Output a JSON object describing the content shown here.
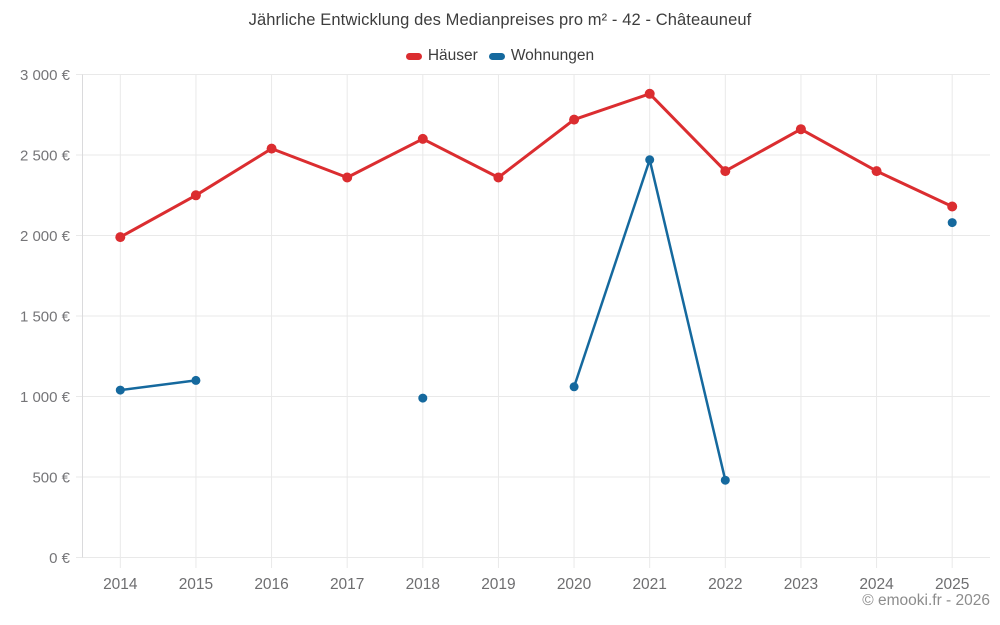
{
  "title": "Jährliche Entwicklung des Medianpreises pro m² - 42 - Châteauneuf",
  "legend": {
    "items": [
      {
        "label": "Häuser",
        "color": "#db2d30"
      },
      {
        "label": "Wohnungen",
        "color": "#15699e"
      }
    ]
  },
  "footer": "© emooki.fr - 2026",
  "chart_data": {
    "type": "line",
    "title": "Jährliche Entwicklung des Medianpreises pro m² - 42 - Châteauneuf",
    "categories": [
      "2014",
      "2015",
      "2016",
      "2017",
      "2018",
      "2019",
      "2020",
      "2021",
      "2022",
      "2023",
      "2024",
      "2025"
    ],
    "series": [
      {
        "name": "Häuser",
        "color": "#db2d30",
        "values": [
          1990,
          2250,
          2540,
          2360,
          2600,
          2360,
          2720,
          2880,
          2400,
          2660,
          2400,
          2180
        ]
      },
      {
        "name": "Wohnungen",
        "color": "#15699e",
        "values": [
          1040,
          1100,
          null,
          null,
          990,
          null,
          1060,
          2470,
          480,
          null,
          null,
          2080
        ]
      }
    ],
    "xlabel": "",
    "ylabel": "",
    "ylim": [
      0,
      3000
    ],
    "y_tick_step": 500,
    "ylabel_ticks": [
      "0 €",
      "500 €",
      "1 000 €",
      "1 500 €",
      "2 000 €",
      "2 500 €",
      "3 000 €"
    ],
    "grid": true,
    "legend_position": "top",
    "annotations": [
      "© emooki.fr - 2026"
    ]
  }
}
